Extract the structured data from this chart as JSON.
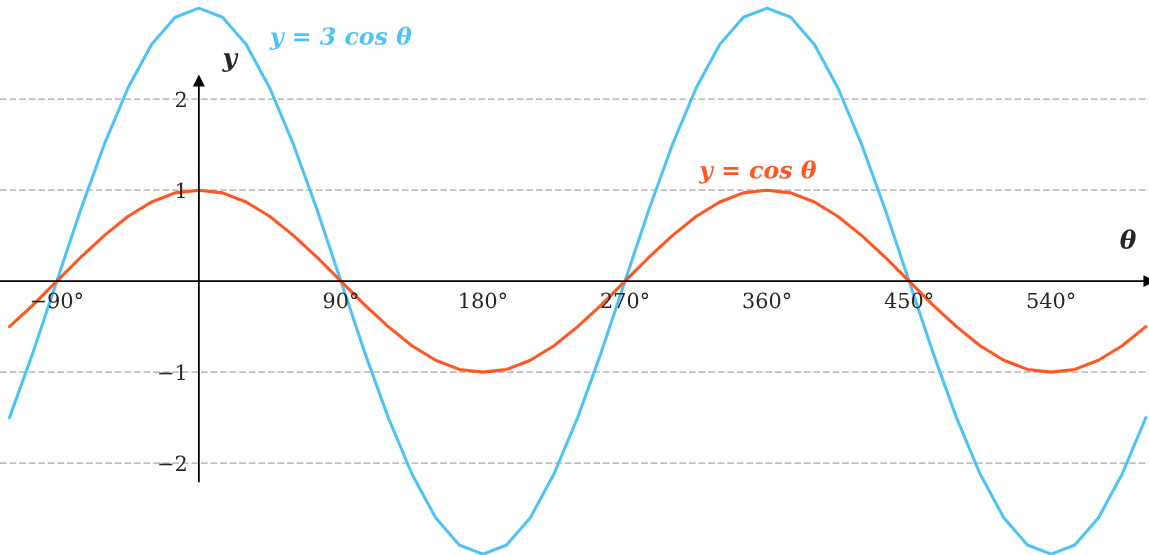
{
  "chart_data": {
    "type": "line",
    "x": [
      -120,
      -105,
      -90,
      -75,
      -60,
      -45,
      -30,
      -15,
      0,
      15,
      30,
      45,
      60,
      75,
      90,
      105,
      120,
      135,
      150,
      165,
      180,
      195,
      210,
      225,
      240,
      255,
      270,
      285,
      300,
      315,
      330,
      345,
      360,
      375,
      390,
      405,
      420,
      435,
      450,
      465,
      480,
      495,
      510,
      525,
      540,
      555,
      570,
      585,
      600
    ],
    "series": [
      {
        "name": "y = 3 cos θ",
        "color": "#4fc3f7",
        "values": [
          -1.5,
          -0.78,
          0,
          0.78,
          1.5,
          2.12,
          2.6,
          2.9,
          3,
          2.9,
          2.6,
          2.12,
          1.5,
          0.78,
          0,
          -0.78,
          -1.5,
          -2.12,
          -2.6,
          -2.9,
          -3,
          -2.9,
          -2.6,
          -2.12,
          -1.5,
          -0.78,
          0,
          0.78,
          1.5,
          2.12,
          2.6,
          2.9,
          3,
          2.9,
          2.6,
          2.12,
          1.5,
          0.78,
          0,
          -0.78,
          -1.5,
          -2.12,
          -2.6,
          -2.9,
          -3,
          -2.9,
          -2.6,
          -2.12,
          -1.5
        ]
      },
      {
        "name": "y = cos θ",
        "color": "#ff5722",
        "values": [
          -0.5,
          -0.26,
          0,
          0.26,
          0.5,
          0.71,
          0.87,
          0.97,
          1,
          0.97,
          0.87,
          0.71,
          0.5,
          0.26,
          0,
          -0.26,
          -0.5,
          -0.71,
          -0.87,
          -0.97,
          -1,
          -0.97,
          -0.87,
          -0.71,
          -0.5,
          -0.26,
          0,
          0.26,
          0.5,
          0.71,
          0.87,
          0.97,
          1,
          0.97,
          0.87,
          0.71,
          0.5,
          0.26,
          0,
          -0.26,
          -0.5,
          -0.71,
          -0.87,
          -0.97,
          -1,
          -0.97,
          -0.87,
          -0.71,
          -0.5
        ]
      }
    ],
    "xlabel": "θ",
    "ylabel": "y",
    "xlim": [
      -126,
      602
    ],
    "ylim": [
      -3.01,
      3.09
    ],
    "xticks": [
      {
        "value": -90,
        "label": "−90°"
      },
      {
        "value": 90,
        "label": "90°"
      },
      {
        "value": 180,
        "label": "180°"
      },
      {
        "value": 270,
        "label": "270°"
      },
      {
        "value": 360,
        "label": "360°"
      },
      {
        "value": 450,
        "label": "450°"
      },
      {
        "value": 540,
        "label": "540°"
      }
    ],
    "yticks": [
      {
        "value": -2,
        "label": "−2"
      },
      {
        "value": -1,
        "label": "−1"
      },
      2,
      1
    ],
    "grid": "y",
    "line_style": "solid",
    "marker": "none"
  }
}
